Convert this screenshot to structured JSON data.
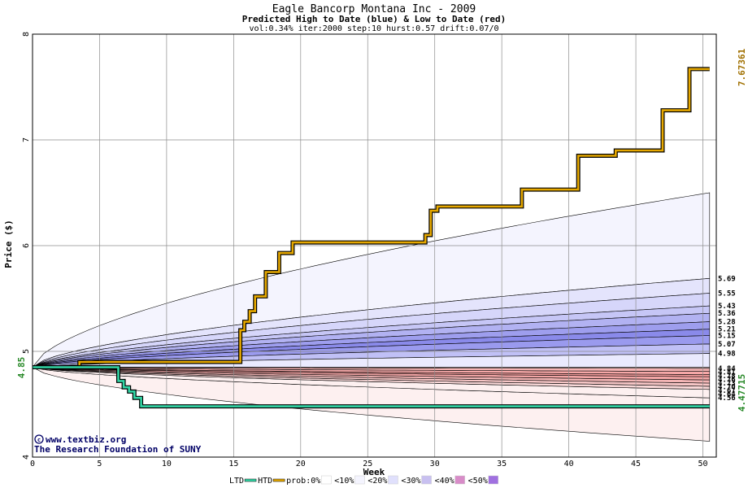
{
  "chart_data": {
    "type": "area",
    "title": "Eagle Bancorp Montana Inc - 2009",
    "subtitle": "Predicted High to Date (blue) &  Low to Date (red)",
    "params": "vol:0.34% iter:2000 step:10 hurst:0.57 drift:0.07/0",
    "xlabel": "Week",
    "ylabel": "Price ($)",
    "xlim": [
      0,
      51
    ],
    "ylim": [
      4,
      8
    ],
    "xticks": [
      0,
      5,
      10,
      15,
      20,
      25,
      30,
      35,
      40,
      45,
      50
    ],
    "yticks": [
      4,
      5,
      6,
      7,
      8
    ],
    "grid": true,
    "start_value": 4.85,
    "start_label": "4.85",
    "max_label": "7.67361",
    "max_value": 7.67361,
    "min_label": "4.47715",
    "min_value": 4.47715,
    "credit_line1": "www.textbiz.org",
    "credit_line2": "The Research Foundation of SUNY",
    "upper_band_levels": [
      6.5,
      5.69,
      5.55,
      5.43,
      5.36,
      5.28,
      5.21,
      5.15,
      5.07,
      4.98
    ],
    "upper_band_labels": [
      "5.69",
      "5.55",
      "5.43",
      "5.36",
      "5.28",
      "5.21",
      "5.15",
      "5.07",
      "4.98"
    ],
    "upper_band_colors": [
      "#f4f4fe",
      "#e4e4fc",
      "#d6d6fa",
      "#c6c6f6",
      "#b2b2f2",
      "#9e9eee",
      "#8a8aea",
      "#9a9aee",
      "#c0c0f6",
      "#eaeafe"
    ],
    "lower_band_levels": [
      4.84,
      4.81,
      4.78,
      4.76,
      4.73,
      4.7,
      4.67,
      4.64,
      4.56,
      4.15
    ],
    "lower_band_labels": [
      "4.84",
      "4.81",
      "4.78",
      "4.76",
      "4.73",
      "4.70",
      "4.67",
      "4.64",
      "4.56"
    ],
    "lower_band_colors": [
      "#fbe0e0",
      "#f6b4b4",
      "#f6a8a8",
      "#f49c9c",
      "#f3a6a6",
      "#f4b6b6",
      "#f6c6c6",
      "#f9d8d8",
      "#fdf0f0"
    ],
    "series": [
      {
        "name": "HTD",
        "color": "#e6a800",
        "x": [
          0,
          3.5,
          3.5,
          15.5,
          15.5,
          15.8,
          15.8,
          16.2,
          16.2,
          16.6,
          16.6,
          17.4,
          17.4,
          18.4,
          18.4,
          19.4,
          19.4,
          29.3,
          29.3,
          29.7,
          29.7,
          30.2,
          30.2,
          36.5,
          36.5,
          40.7,
          40.7,
          43.5,
          43.5,
          47,
          47,
          49,
          49,
          50.5
        ],
        "values": [
          4.85,
          4.85,
          4.9,
          4.9,
          5.2,
          5.2,
          5.28,
          5.28,
          5.38,
          5.38,
          5.52,
          5.52,
          5.75,
          5.75,
          5.93,
          5.93,
          6.03,
          6.03,
          6.1,
          6.1,
          6.33,
          6.33,
          6.37,
          6.37,
          6.53,
          6.53,
          6.85,
          6.85,
          6.9,
          6.9,
          7.28,
          7.28,
          7.67,
          7.67
        ]
      },
      {
        "name": "LTD",
        "color": "#33d6a6",
        "x": [
          0,
          6.4,
          6.4,
          6.8,
          6.8,
          7.2,
          7.2,
          7.6,
          7.6,
          8.1,
          8.1,
          50.5
        ],
        "values": [
          4.85,
          4.85,
          4.72,
          4.72,
          4.66,
          4.66,
          4.62,
          4.62,
          4.56,
          4.56,
          4.48,
          4.48
        ]
      }
    ],
    "legend": [
      {
        "label": "LTD",
        "swatch": "#33d6a6"
      },
      {
        "label": "HTD",
        "swatch": "#e6a800"
      },
      {
        "label": "prob:0%",
        "swatch": "#ffffff"
      },
      {
        "label": "<10%",
        "swatch": "#f4f4fe"
      },
      {
        "label": "<20%",
        "swatch": "#e0e0fc"
      },
      {
        "label": "<30%",
        "swatch": "#c8c0f0"
      },
      {
        "label": "<40%",
        "swatch": "#d88cc8"
      },
      {
        "label": "<50%",
        "swatch": "#a070e0"
      }
    ]
  }
}
